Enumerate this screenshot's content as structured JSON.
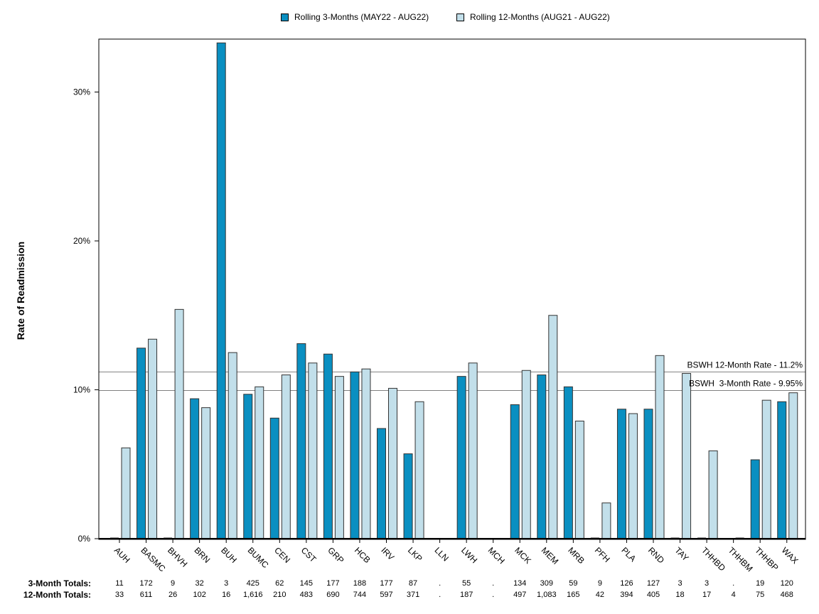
{
  "colors": {
    "three_month": "#0a8fc1",
    "twelve_month": "#c2dfea",
    "ref_line": "#808080"
  },
  "legend": {
    "three_month": "Rolling 3-Months (MAY22 - AUG22)",
    "twelve_month": "Rolling 12-Months (AUG21 - AUG22)"
  },
  "chart_data": {
    "type": "bar",
    "ylabel": "Rate of Readmission",
    "ylim": [
      0,
      33.5
    ],
    "yticks": [
      "0%",
      "10%",
      "20%",
      "30%"
    ],
    "ytick_values": [
      0,
      10,
      20,
      30
    ],
    "categories": [
      "AUH",
      "BASMC",
      "BHVH",
      "BRN",
      "BUH",
      "BUMC",
      "CEN",
      "CST",
      "GRP",
      "HCB",
      "IRV",
      "LKP",
      "LLN",
      "LWH",
      "MCH",
      "MCK",
      "MEM",
      "MRB",
      "PFH",
      "PLA",
      "RND",
      "TAY",
      "THHBD",
      "THHBM",
      "THHBP",
      "WAX"
    ],
    "series": [
      {
        "name": "Rolling 3-Months (MAY22 - AUG22)",
        "values": [
          0,
          12.8,
          0,
          9.4,
          33.3,
          9.7,
          8.1,
          13.1,
          12.4,
          11.2,
          7.4,
          5.7,
          null,
          10.9,
          null,
          9.0,
          11.0,
          10.2,
          0,
          8.7,
          8.7,
          0,
          0,
          null,
          5.3,
          9.2
        ]
      },
      {
        "name": "Rolling 12-Months (AUG21 - AUG22)",
        "values": [
          6.1,
          13.4,
          15.4,
          8.8,
          12.5,
          10.2,
          11.0,
          11.8,
          10.9,
          11.4,
          10.1,
          9.2,
          null,
          11.8,
          null,
          11.3,
          15.0,
          7.9,
          2.4,
          8.4,
          12.3,
          11.1,
          5.9,
          0,
          9.3,
          9.8
        ]
      }
    ],
    "reference_lines": [
      {
        "label": "BSWH 12-Month Rate - 11.2%",
        "value": 11.2
      },
      {
        "label": "BSWH  3-Month Rate - 9.95%",
        "value": 9.95
      }
    ],
    "grid": false,
    "legend_position": "top-center"
  },
  "table": {
    "three_label": "3-Month Totals:",
    "twelve_label": "12-Month Totals:",
    "three_values": [
      "11",
      "172",
      "9",
      "32",
      "3",
      "425",
      "62",
      "145",
      "177",
      "188",
      "177",
      "87",
      ".",
      "55",
      ".",
      "134",
      "309",
      "59",
      "9",
      "126",
      "127",
      "3",
      "3",
      ".",
      "19",
      "120"
    ],
    "twelve_values": [
      "33",
      "611",
      "26",
      "102",
      "16",
      "1,616",
      "210",
      "483",
      "690",
      "744",
      "597",
      "371",
      ".",
      "187",
      ".",
      "497",
      "1,083",
      "165",
      "42",
      "394",
      "405",
      "18",
      "17",
      "4",
      "75",
      "468"
    ]
  }
}
